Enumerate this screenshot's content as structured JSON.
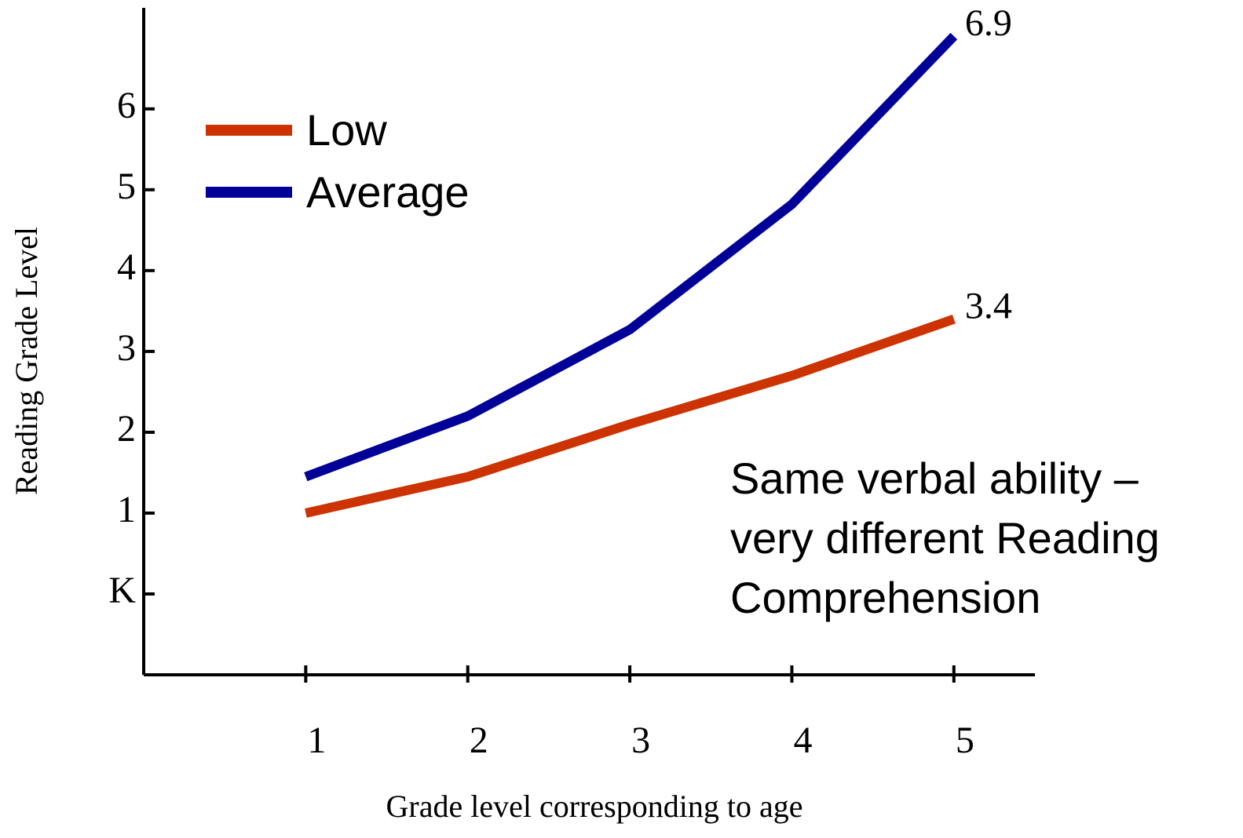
{
  "chart_data": {
    "type": "line",
    "x_label": "Grade level corresponding to age",
    "y_label": "Reading Grade Level",
    "x": [
      1,
      2,
      3,
      4,
      5
    ],
    "series": [
      {
        "name": "Low",
        "color": "#cc3300",
        "values": [
          1.0,
          1.45,
          2.1,
          2.7,
          3.4
        ]
      },
      {
        "name": "Average",
        "color": "#000099",
        "values": [
          1.45,
          2.2,
          3.27,
          4.82,
          6.9
        ]
      }
    ],
    "end_labels": [
      "3.4",
      "6.9"
    ],
    "note": [
      "Same verbal ability –",
      "very different Reading",
      "Comprehension"
    ],
    "xlim": [
      0,
      5.5
    ],
    "xticks": [
      1,
      2,
      3,
      4,
      5
    ],
    "ylim": [
      -1,
      7.25
    ],
    "yticks": [
      {
        "value": 0,
        "label": "K"
      },
      1,
      2,
      3,
      4,
      5,
      6
    ],
    "legend": "upper left"
  }
}
